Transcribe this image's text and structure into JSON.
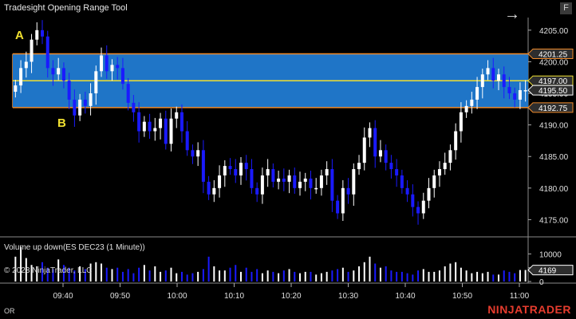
{
  "window": {
    "title": "Tradesight Opening Range Tool",
    "f_button": "F",
    "nav_icon": "arrow-right-icon"
  },
  "markers": {
    "a": "A",
    "b": "B"
  },
  "colors": {
    "up_candle": "#ffffff",
    "down_candle": "#1a1aff",
    "range_fill": "#1f75c7",
    "range_border": "#f08a2a",
    "mid_line": "#f0e030",
    "price_label": "#2e2e2e"
  },
  "chart_data": [
    {
      "type": "candlestick",
      "title": "",
      "x_ticks": [
        "09:40",
        "09:50",
        "10:00",
        "10:10",
        "10:20",
        "10:30",
        "10:40",
        "10:50",
        "11:00"
      ],
      "y_ticks": [
        4205.0,
        4200.0,
        4195.0,
        4190.0,
        4185.0,
        4180.0,
        4175.0
      ],
      "y_range": [
        4172.4,
        4207.0
      ],
      "opening_range": {
        "high": 4201.25,
        "low": 4192.75,
        "mid": 4197.0
      },
      "price_labels": [
        "4201.25",
        "4197.00",
        "4195.50",
        "4192.75"
      ],
      "last_price": 4195.5,
      "closes": [
        4196.25,
        4199.0,
        4200.0,
        4203.5,
        4205.0,
        4204.0,
        4199.0,
        4198.0,
        4199.0,
        4197.0,
        4194.0,
        4191.5,
        4194.0,
        4193.0,
        4195.0,
        4198.5,
        4201.0,
        4198.5,
        4199.5,
        4199.0,
        4196.5,
        4193.5,
        4192.0,
        4189.0,
        4190.5,
        4189.0,
        4189.5,
        4191.0,
        4187.0,
        4191.0,
        4192.0,
        4189.0,
        4186.0,
        4185.0,
        4186.0,
        4181.0,
        4179.0,
        4180.0,
        4182.0,
        4183.5,
        4183.0,
        4182.0,
        4184.0,
        4183.0,
        4180.0,
        4179.0,
        4182.0,
        4183.0,
        4181.0,
        4181.5,
        4181.0,
        4182.0,
        4180.0,
        4181.0,
        4181.5,
        4180.0,
        4180.0,
        4182.0,
        4183.0,
        4178.0,
        4176.0,
        4180.0,
        4179.0,
        4183.0,
        4184.0,
        4188.0,
        4189.5,
        4185.0,
        4186.0,
        4184.0,
        4183.0,
        4182.0,
        4180.0,
        4179.0,
        4177.0,
        4176.0,
        4178.0,
        4180.0,
        4182.0,
        4183.0,
        4184.0,
        4186.0,
        4189.0,
        4192.0,
        4193.0,
        4194.0,
        4196.0,
        4198.0,
        4199.0,
        4197.0,
        4198.0,
        4196.0,
        4195.0,
        4194.0,
        4195.5,
        4195.5
      ]
    },
    {
      "type": "bar",
      "title": "Volume up down(ES DEC23 (1 Minute))",
      "y_ticks": [
        10000,
        5000,
        0
      ],
      "y_range": [
        0,
        13000
      ],
      "last_volume": 4169,
      "last_volume_label": "4169",
      "values": [
        9000,
        12500,
        8500,
        6000,
        5500,
        7000,
        5000,
        4500,
        8000,
        6000,
        5000,
        4000,
        5500,
        4500,
        6500,
        7000,
        6500,
        5000,
        4500,
        5000,
        3500,
        4500,
        3000,
        5000,
        6000,
        4000,
        5500,
        3500,
        4000,
        5000,
        3000,
        3500,
        2500,
        3000,
        3500,
        4500,
        9000,
        5500,
        4000,
        4000,
        5000,
        6000,
        3500,
        5000,
        3500,
        4500,
        3000,
        4000,
        3500,
        3000,
        4000,
        4500,
        3500,
        3000,
        3500,
        3500,
        2500,
        3000,
        3500,
        4000,
        4500,
        5000,
        3500,
        4000,
        5500,
        7000,
        9000,
        6500,
        5000,
        5500,
        4000,
        3500,
        3500,
        3000,
        2500,
        4000,
        4500,
        3500,
        3500,
        4000,
        5500,
        6500,
        7000,
        5000,
        4000,
        3000,
        3500,
        3000,
        3500,
        2500,
        2500,
        4000,
        3500,
        3000,
        4169,
        4169
      ]
    }
  ],
  "pane_text": {
    "copyright": "© 2023 NinjaTrader, LLC"
  },
  "footer": {
    "left_label": "OR",
    "brand": "NINJATRADER"
  }
}
